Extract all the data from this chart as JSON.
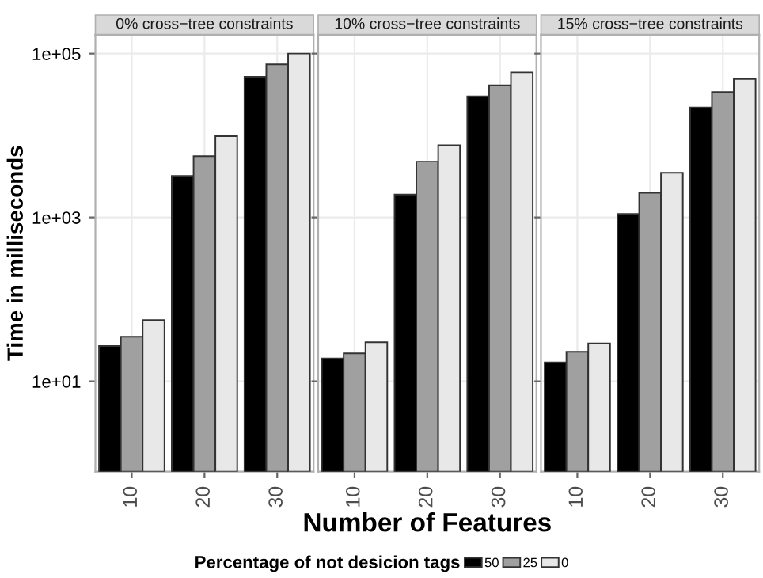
{
  "chart_data": [
    {
      "type": "bar",
      "title": "0% cross−tree constraints",
      "ylabel": "Time in milliseconds",
      "legend_title": "Percentage of not desicion tags",
      "legend": "bottom",
      "log": true,
      "grid": true,
      "categories": [
        "10",
        "20",
        "30"
      ],
      "ylim": [
        0.79,
        170000
      ],
      "yticks": [
        {
          "value": 10,
          "label": "1e+01"
        },
        {
          "value": 1000,
          "label": "1e+03"
        },
        {
          "value": 100000,
          "label": "1e+05"
        }
      ],
      "series": [
        {
          "name": "50",
          "color": "#000000",
          "values": [
            27,
            3200,
            52000
          ]
        },
        {
          "name": "25",
          "color": "#a0a0a0",
          "values": [
            35,
            5600,
            74000
          ]
        },
        {
          "name": "0",
          "color": "#e8e8e8",
          "values": [
            56,
            9800,
            100000
          ]
        }
      ]
    },
    {
      "type": "bar",
      "title": "10% cross−tree constraints",
      "xlabel": "Number of Features",
      "log": true,
      "grid": true,
      "tick_labels": "x",
      "categories": [
        "10",
        "20",
        "30"
      ],
      "ylim": [
        0.79,
        170000
      ],
      "yticks": [
        {
          "value": 10,
          "label": null
        },
        {
          "value": 1000,
          "label": null
        },
        {
          "value": 100000,
          "label": null
        }
      ],
      "series": [
        {
          "color": "#000000",
          "values": [
            19,
            1900,
            30000
          ]
        },
        {
          "color": "#a0a0a0",
          "values": [
            22,
            4800,
            41000
          ]
        },
        {
          "color": "#e8e8e8",
          "values": [
            30,
            7600,
            59000
          ]
        }
      ]
    },
    {
      "type": "bar",
      "title": "15% cross−tree constraints",
      "log": true,
      "grid": true,
      "tick_labels": "x",
      "categories": [
        "10",
        "20",
        "30"
      ],
      "ylim": [
        0.79,
        170000
      ],
      "yticks": [
        {
          "value": 10,
          "label": null
        },
        {
          "value": 1000,
          "label": null
        },
        {
          "value": 100000,
          "label": null
        }
      ],
      "series": [
        {
          "color": "#000000",
          "values": [
            17,
            1100,
            22000
          ]
        },
        {
          "color": "#a0a0a0",
          "values": [
            23,
            2000,
            34000
          ]
        },
        {
          "color": "#e8e8e8",
          "values": [
            29,
            3500,
            49000
          ]
        }
      ]
    }
  ]
}
